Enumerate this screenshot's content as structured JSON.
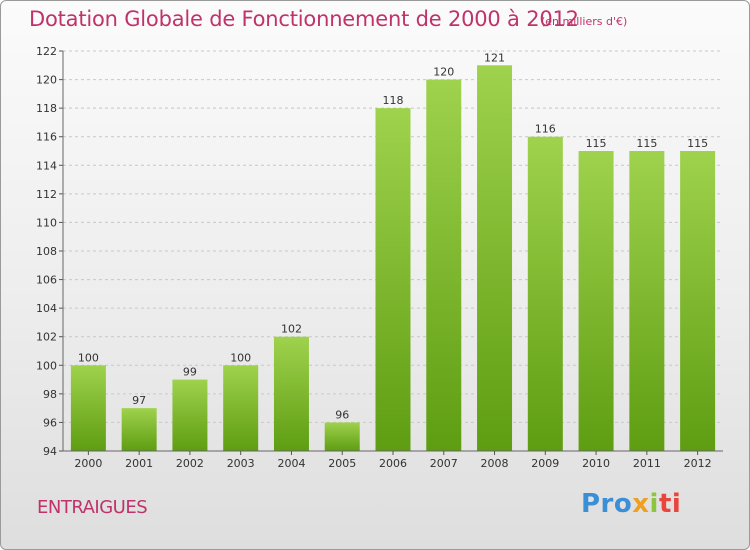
{
  "header": {
    "title": "Dotation Globale de Fonctionnement de 2000 à 2012",
    "unit": "(en milliers d'€)"
  },
  "footer": {
    "commune": "ENTRAIGUES",
    "logo": [
      "Pro",
      "x",
      "i",
      "ti"
    ]
  },
  "colors": {
    "bar_top": "#9fd24d",
    "bar_bottom": "#5e9d12",
    "title": "#c0336a"
  },
  "chart_data": {
    "type": "bar",
    "title": "Dotation Globale de Fonctionnement de 2000 à 2012",
    "subtitle": "(en milliers d'€)",
    "categories": [
      "2000",
      "2001",
      "2002",
      "2003",
      "2004",
      "2005",
      "2006",
      "2007",
      "2008",
      "2009",
      "2010",
      "2011",
      "2012"
    ],
    "values": [
      100,
      97,
      99,
      100,
      102,
      96,
      118,
      120,
      121,
      116,
      115,
      115,
      115
    ],
    "ylim": [
      94,
      122
    ],
    "yticks": [
      94,
      96,
      98,
      100,
      102,
      104,
      106,
      108,
      110,
      112,
      114,
      116,
      118,
      120,
      122
    ],
    "grid": true,
    "xlabel": "",
    "ylabel": ""
  }
}
